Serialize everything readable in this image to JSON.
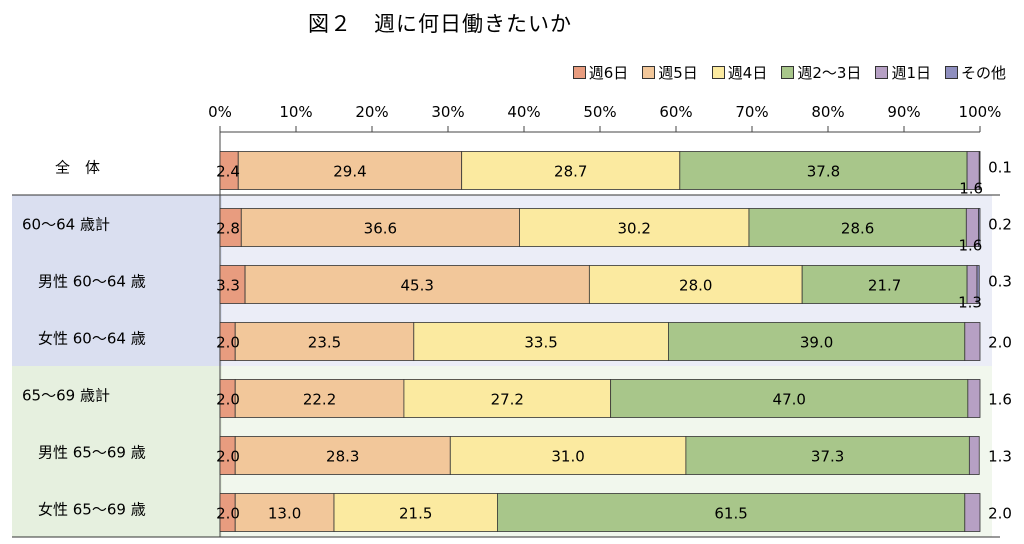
{
  "title": "図２　週に何日働きたいか",
  "chart_data": {
    "type": "bar",
    "orientation": "horizontal",
    "stacked": "percent",
    "xlim": [
      0,
      100
    ],
    "x_ticks": [
      "0%",
      "10%",
      "20%",
      "30%",
      "40%",
      "50%",
      "60%",
      "70%",
      "80%",
      "90%",
      "100%"
    ],
    "legend_position": "top-right",
    "categories": [
      "全　体",
      "60～64 歳計",
      "男性 60～64 歳",
      "女性 60～64 歳",
      "65～69 歳計",
      "男性 65～69 歳",
      "女性 65～69 歳"
    ],
    "groups": [
      {
        "rows": [
          1,
          2,
          3
        ],
        "color": "#dadff0"
      },
      {
        "rows": [
          4,
          5,
          6
        ],
        "color": "#e6f0df"
      }
    ],
    "series": [
      {
        "name": "週6日",
        "color": "#e89c7f",
        "values": [
          2.4,
          2.8,
          3.3,
          2.0,
          2.0,
          2.0,
          2.0
        ]
      },
      {
        "name": "週5日",
        "color": "#f2c79a",
        "values": [
          29.4,
          36.6,
          45.3,
          23.5,
          22.2,
          28.3,
          13.0
        ]
      },
      {
        "name": "週4日",
        "color": "#fbeaa0",
        "values": [
          28.7,
          30.2,
          28.0,
          33.5,
          27.2,
          31.0,
          21.5
        ]
      },
      {
        "name": "週2～3日",
        "color": "#a8c68a",
        "values": [
          37.8,
          28.6,
          21.7,
          39.0,
          47.0,
          37.3,
          61.5
        ]
      },
      {
        "name": "週1日",
        "color": "#b6a0c4",
        "values": [
          1.6,
          1.6,
          1.3,
          2.0,
          1.6,
          1.3,
          2.0
        ]
      },
      {
        "name": "その他",
        "color": "#8f8fbf",
        "values": [
          0.1,
          0.2,
          0.3,
          null,
          null,
          null,
          null
        ]
      }
    ],
    "data_labels": [
      [
        "2.4",
        "29.4",
        "28.7",
        "37.8",
        "1.6",
        "0.1"
      ],
      [
        "2.8",
        "36.6",
        "30.2",
        "28.6",
        "1.6",
        "0.2"
      ],
      [
        "3.3",
        "45.3",
        "28.0",
        "21.7",
        "1.3",
        "0.3"
      ],
      [
        "2.0",
        "23.5",
        "33.5",
        "39.0",
        "2.0",
        ""
      ],
      [
        "2.0",
        "22.2",
        "27.2",
        "47.0",
        "1.6",
        ""
      ],
      [
        "2.0",
        "28.3",
        "31.0",
        "37.3",
        "1.3",
        ""
      ],
      [
        "2.0",
        "13.0",
        "21.5",
        "61.5",
        "2.0",
        ""
      ]
    ]
  }
}
